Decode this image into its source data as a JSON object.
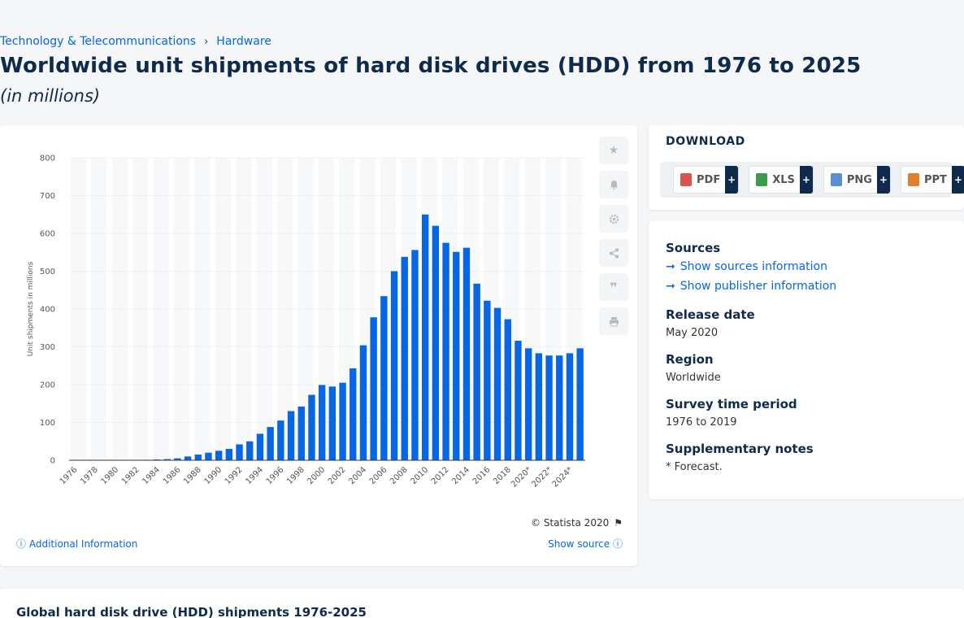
{
  "breadcrumb": {
    "category": "Technology & Telecommunications",
    "sub": "Hardware",
    "sep": "›"
  },
  "title": "Worldwide unit shipments of hard disk drives (HDD) from 1976 to 2025",
  "subtitle": "(in millions)",
  "copyright": "© Statista 2020",
  "additional_info": "Additional Information",
  "show_source": "Show source",
  "download": {
    "title": "DOWNLOAD",
    "buttons": [
      {
        "label": "PDF",
        "color": "#d9534f"
      },
      {
        "label": "XLS",
        "color": "#3c9a4c"
      },
      {
        "label": "PNG",
        "color": "#5a8fd6"
      },
      {
        "label": "PPT",
        "color": "#e0802d"
      }
    ],
    "plus": "+"
  },
  "info": {
    "sources_h": "Sources",
    "sources_link": "Show sources information",
    "publisher_link": "Show publisher information",
    "release_h": "Release date",
    "release_v": "May 2020",
    "region_h": "Region",
    "region_v": "Worldwide",
    "period_h": "Survey time period",
    "period_v": "1976 to 2019",
    "notes_h": "Supplementary notes",
    "notes_v": "* Forecast."
  },
  "bottom_title": "Global hard disk drive (HDD) shipments 1976-2025",
  "chart_data": {
    "type": "bar",
    "ylabel": "Unit shipments in millions",
    "ylim": [
      0,
      800
    ],
    "yticks": [
      0,
      100,
      200,
      300,
      400,
      500,
      600,
      700,
      800
    ],
    "grid": true,
    "bar_color": "#0666e5",
    "categories": [
      "1976",
      "1977",
      "1978",
      "1979",
      "1980",
      "1981",
      "1982",
      "1983",
      "1984",
      "1985",
      "1986",
      "1987",
      "1988",
      "1989",
      "1990",
      "1991",
      "1992",
      "1993",
      "1994",
      "1995",
      "1996",
      "1997",
      "1998",
      "1999",
      "2000",
      "2001",
      "2002",
      "2003",
      "2004",
      "2005",
      "2006",
      "2007",
      "2008",
      "2009",
      "2010",
      "2011",
      "2012",
      "2013",
      "2014",
      "2015",
      "2016",
      "2017",
      "2018",
      "2019",
      "2020*",
      "2021*",
      "2022*",
      "2023*",
      "2024*",
      "2025*"
    ],
    "xtick_labels": [
      "1976",
      "1978",
      "1980",
      "1982",
      "1984",
      "1986",
      "1988",
      "1990",
      "1992",
      "1994",
      "1996",
      "1998",
      "2000",
      "2002",
      "2004",
      "2006",
      "2008",
      "2010",
      "2012",
      "2014",
      "2016",
      "2018",
      "2020*",
      "2022*",
      "2024*"
    ],
    "values": [
      0.1,
      0.2,
      0.3,
      0.4,
      0.5,
      0.6,
      0.8,
      1.2,
      2,
      3,
      5,
      10,
      15,
      20,
      25,
      30,
      42,
      50,
      70,
      88,
      105,
      130,
      142,
      173,
      199,
      195,
      205,
      243,
      304,
      378,
      434,
      500,
      538,
      556,
      650,
      620,
      575,
      551,
      562,
      467,
      422,
      403,
      373,
      316,
      296,
      283,
      277,
      277,
      283,
      296
    ]
  }
}
